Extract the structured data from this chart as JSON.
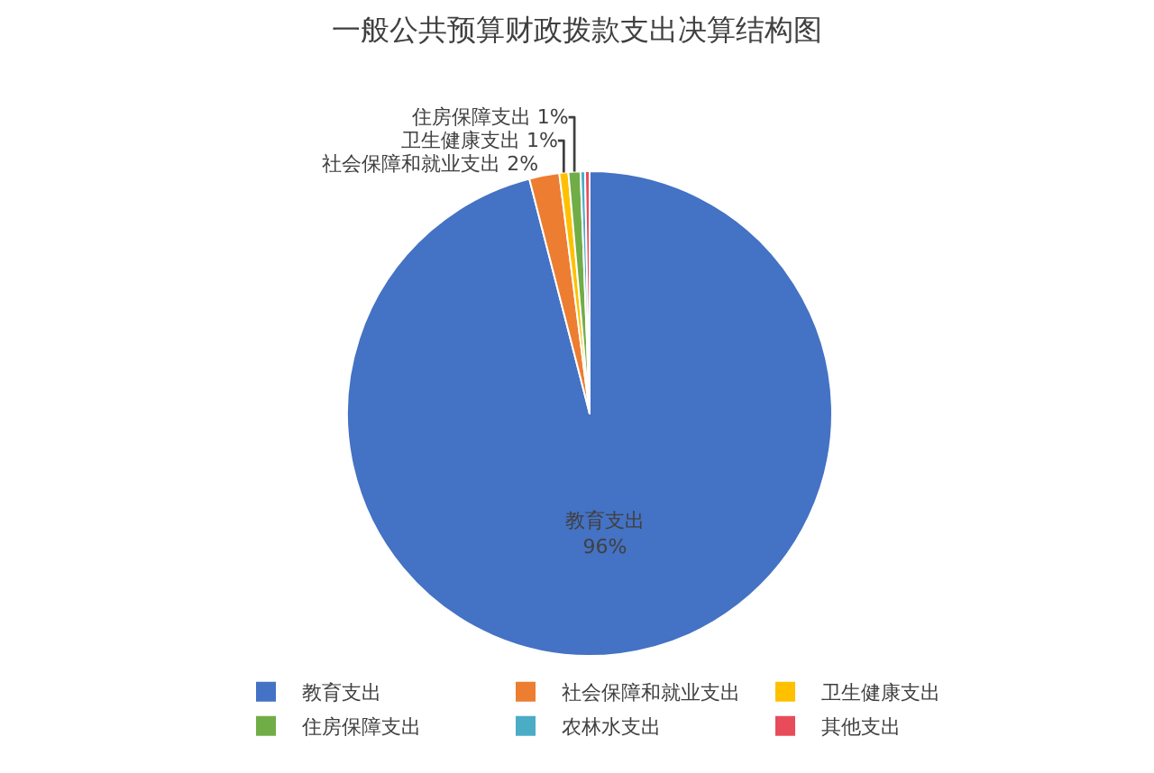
{
  "chart_data": {
    "type": "pie",
    "title": "一般公共预算财政拨款支出决算结构图",
    "categories": [
      "教育支出",
      "社会保障和就业支出",
      "卫生健康支出",
      "住房保障支出",
      "农林水支出",
      "其他支出"
    ],
    "values": [
      96,
      2,
      0.6,
      0.8,
      0.3,
      0.3
    ],
    "colors": [
      "#4472c4",
      "#ed7d31",
      "#ffc000",
      "#70ad47",
      "#4bacc6",
      "#e84c5a"
    ],
    "value_labels": [
      "96%",
      "2%",
      "1%",
      "1%",
      null,
      null
    ],
    "legend": "bottom"
  }
}
